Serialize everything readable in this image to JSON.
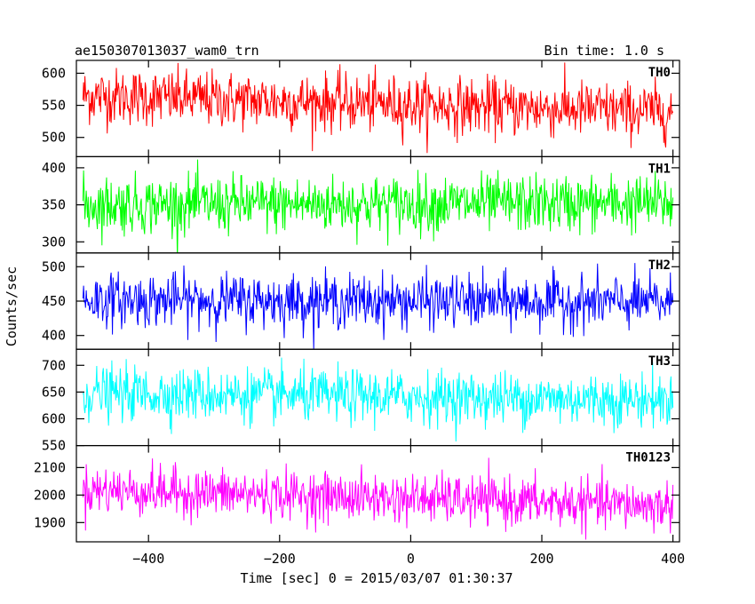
{
  "chart_data": {
    "type": "line",
    "title": "ae150307013037_wam0_trn",
    "bin_time_label": "Bin time: 1.0 s",
    "xlabel": "Time [sec] 0 = 2015/03/07 01:30:37",
    "ylabel": "Counts/sec",
    "xlim": [
      -510,
      410
    ],
    "x_range": [
      -500,
      400
    ],
    "xticks": [
      -400,
      -200,
      0,
      200,
      400
    ],
    "xtick_labels": [
      "−400",
      "−200",
      "0",
      "200",
      "400"
    ],
    "grid": false,
    "panels": [
      {
        "name": "TH0",
        "color": "#ff0000",
        "ylim": [
          470,
          620
        ],
        "yticks": [
          500,
          550,
          600
        ],
        "mean_start": 565,
        "mean_end": 540,
        "spread": 40
      },
      {
        "name": "TH1",
        "color": "#00ff00",
        "ylim": [
          285,
          415
        ],
        "yticks": [
          300,
          350,
          400
        ],
        "mean_start": 350,
        "mean_end": 352,
        "spread": 35
      },
      {
        "name": "TH2",
        "color": "#0000ff",
        "ylim": [
          380,
          520
        ],
        "yticks": [
          400,
          450,
          500
        ],
        "mean_start": 452,
        "mean_end": 448,
        "spread": 35
      },
      {
        "name": "TH3",
        "color": "#00ffff",
        "ylim": [
          550,
          730
        ],
        "yticks": [
          550,
          600,
          650,
          700
        ],
        "mean_start": 648,
        "mean_end": 635,
        "spread": 45
      },
      {
        "name": "TH0123",
        "color": "#ff00ff",
        "ylim": [
          1830,
          2180
        ],
        "yticks": [
          1900,
          2000,
          2100
        ],
        "mean_start": 2020,
        "mean_end": 1960,
        "spread": 80
      }
    ]
  }
}
